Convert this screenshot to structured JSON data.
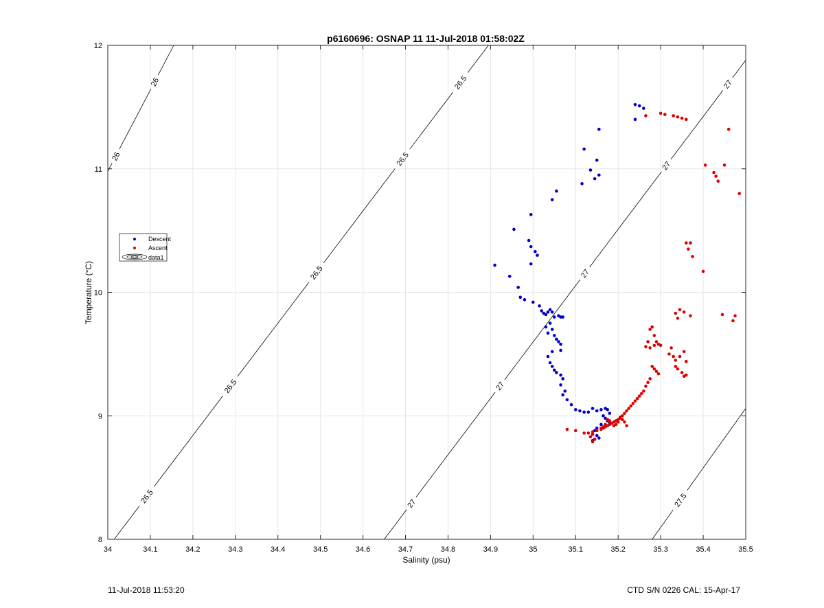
{
  "chart_data": {
    "type": "scatter",
    "title": "p6160696: OSNAP 11 11-Jul-2018 01:58:02Z",
    "xlabel": "Salinity (psu)",
    "ylabel": "Temperature (°C)",
    "xlim": [
      34,
      35.5
    ],
    "ylim": [
      8,
      12
    ],
    "xticks": [
      34,
      34.1,
      34.2,
      34.3,
      34.4,
      34.5,
      34.6,
      34.7,
      34.8,
      34.9,
      35,
      35.1,
      35.2,
      35.3,
      35.4,
      35.5
    ],
    "xtick_labels": [
      "34",
      "34.1",
      "34.2",
      "34.3",
      "34.4",
      "34.5",
      "34.6",
      "34.7",
      "34.8",
      "34.9",
      "35",
      "35.1",
      "35.2",
      "35.3",
      "35.4",
      "35.5"
    ],
    "yticks": [
      8,
      9,
      10,
      11,
      12
    ],
    "ytick_labels": [
      "8",
      "9",
      "10",
      "11",
      "12"
    ],
    "grid": true,
    "legend_position": "left",
    "legend": [
      "Descent",
      "Ascent",
      "data1"
    ],
    "series": [
      {
        "name": "Descent",
        "color": "#0000cc",
        "x": [
          35.24,
          35.25,
          35.26,
          35.24,
          35.155,
          35.15,
          35.155,
          35.145,
          35.135,
          35.12,
          35.115,
          35.055,
          35.045,
          34.995,
          34.955,
          34.99,
          34.995,
          35.005,
          35.01,
          34.995,
          34.91,
          34.945,
          34.965,
          34.97,
          34.98,
          35.0,
          35.015,
          35.02,
          35.025,
          35.03,
          35.035,
          35.04,
          35.045,
          35.05,
          35.06,
          35.065,
          35.07,
          35.04,
          35.03,
          35.045,
          35.035,
          35.05,
          35.055,
          35.06,
          35.065,
          35.065,
          35.045,
          35.035,
          35.04,
          35.045,
          35.05,
          35.055,
          35.065,
          35.07,
          35.065,
          35.075,
          35.07,
          35.08,
          35.09,
          35.1,
          35.11,
          35.12,
          35.13,
          35.14,
          35.15,
          35.16,
          35.17,
          35.175,
          35.18,
          35.165,
          35.17,
          35.175,
          35.18,
          35.16,
          35.15,
          35.145,
          35.14,
          35.15,
          35.155,
          35.145,
          35.14
        ],
        "y": [
          11.52,
          11.51,
          11.49,
          11.4,
          11.32,
          11.07,
          10.95,
          10.92,
          10.99,
          11.16,
          10.88,
          10.82,
          10.75,
          10.63,
          10.51,
          10.42,
          10.37,
          10.33,
          10.3,
          10.23,
          10.22,
          10.13,
          10.04,
          9.96,
          9.94,
          9.92,
          9.89,
          9.85,
          9.83,
          9.82,
          9.84,
          9.86,
          9.84,
          9.8,
          9.81,
          9.8,
          9.8,
          9.75,
          9.72,
          9.7,
          9.67,
          9.65,
          9.62,
          9.6,
          9.58,
          9.53,
          9.52,
          9.48,
          9.43,
          9.4,
          9.37,
          9.35,
          9.33,
          9.3,
          9.25,
          9.2,
          9.17,
          9.13,
          9.09,
          9.05,
          9.04,
          9.03,
          9.03,
          9.06,
          9.04,
          9.05,
          9.06,
          9.05,
          9.02,
          9.0,
          8.98,
          8.96,
          8.94,
          8.93,
          8.9,
          8.88,
          8.85,
          8.84,
          8.82,
          8.81,
          8.8
        ]
      },
      {
        "name": "Ascent",
        "color": "#dd0000",
        "x": [
          35.265,
          35.3,
          35.31,
          35.33,
          35.34,
          35.35,
          35.36,
          35.46,
          35.405,
          35.425,
          35.43,
          35.435,
          35.45,
          35.485,
          35.36,
          35.37,
          35.365,
          35.375,
          35.4,
          35.335,
          35.345,
          35.355,
          35.37,
          35.34,
          35.445,
          35.475,
          35.47,
          35.28,
          35.275,
          35.285,
          35.29,
          35.295,
          35.27,
          35.265,
          35.275,
          35.285,
          35.3,
          35.32,
          35.325,
          35.33,
          35.335,
          35.345,
          35.355,
          35.36,
          35.335,
          35.34,
          35.35,
          35.355,
          35.36,
          35.28,
          35.285,
          35.29,
          35.295,
          35.275,
          35.27,
          35.265,
          35.26,
          35.255,
          35.25,
          35.245,
          35.24,
          35.235,
          35.23,
          35.225,
          35.22,
          35.215,
          35.21,
          35.205,
          35.2,
          35.195,
          35.19,
          35.185,
          35.18,
          35.175,
          35.17,
          35.165,
          35.16,
          35.15,
          35.14,
          35.13,
          35.12,
          35.1,
          35.08,
          35.22,
          35.215,
          35.21,
          35.205,
          35.2,
          35.195,
          35.19,
          35.185,
          35.18,
          35.175,
          35.17,
          35.165,
          35.16,
          35.14,
          35.135,
          35.145,
          35.14
        ],
        "y": [
          11.43,
          11.45,
          11.44,
          11.43,
          11.42,
          11.41,
          11.4,
          11.32,
          11.03,
          10.97,
          10.94,
          10.9,
          11.03,
          10.8,
          10.4,
          10.4,
          10.35,
          10.29,
          10.17,
          9.83,
          9.86,
          9.84,
          9.81,
          9.79,
          9.82,
          9.81,
          9.77,
          9.72,
          9.7,
          9.65,
          9.6,
          9.58,
          9.6,
          9.56,
          9.55,
          9.57,
          9.57,
          9.5,
          9.55,
          9.48,
          9.45,
          9.48,
          9.52,
          9.44,
          9.4,
          9.38,
          9.35,
          9.32,
          9.33,
          9.4,
          9.38,
          9.36,
          9.34,
          9.3,
          9.27,
          9.24,
          9.2,
          9.18,
          9.16,
          9.14,
          9.12,
          9.1,
          9.08,
          9.06,
          9.04,
          9.02,
          9.0,
          8.99,
          8.97,
          8.96,
          8.95,
          8.94,
          8.93,
          8.92,
          8.91,
          8.9,
          8.89,
          8.88,
          8.87,
          8.86,
          8.86,
          8.88,
          8.89,
          8.92,
          8.95,
          8.97,
          8.98,
          8.95,
          8.93,
          8.92,
          8.94,
          8.96,
          8.97,
          8.93,
          8.91,
          8.9,
          8.85,
          8.83,
          8.81,
          8.79
        ]
      }
    ],
    "contours": [
      {
        "label": "26",
        "x1": 34.0,
        "y1": 10.98,
        "x2": 34.155,
        "y2": 12.0,
        "labels_at": [
          0.12,
          0.71
        ]
      },
      {
        "label": "26.5",
        "x1": 34.015,
        "y1": 8.0,
        "x2": 34.895,
        "y2": 12.0,
        "labels_at": [
          0.087,
          0.31,
          0.54,
          0.77,
          0.925
        ]
      },
      {
        "label": "27",
        "x1": 34.65,
        "y1": 8.0,
        "x2": 35.5,
        "y2": 11.88,
        "labels_at": [
          0.075,
          0.32,
          0.555,
          0.78,
          0.95
        ]
      },
      {
        "label": "27.5",
        "x1": 35.28,
        "y1": 8.0,
        "x2": 35.5,
        "y2": 9.06,
        "labels_at": [
          0.3
        ]
      }
    ]
  },
  "footer": {
    "timestamp": "11-Jul-2018 11:53:20",
    "instrument": "CTD S/N 0226  CAL: 15-Apr-17"
  }
}
